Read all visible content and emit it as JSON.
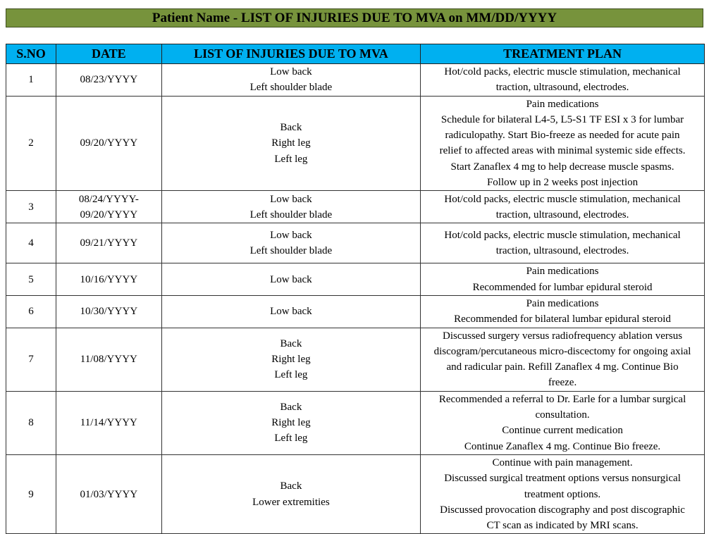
{
  "title": "Patient Name - LIST OF INJURIES DUE TO MVA on MM/DD/YYYY",
  "headers": [
    "S.NO",
    "DATE",
    "LIST OF INJURIES DUE TO MVA",
    "TREATMENT PLAN"
  ],
  "colors": {
    "title_bg": "#77933C",
    "header_bg": "#00B0F0"
  },
  "rows": [
    {
      "sno": "1",
      "date": [
        "08/23/YYYY"
      ],
      "injuries": [
        "Low back",
        "Left shoulder blade"
      ],
      "treatment": [
        "Hot/cold packs, electric muscle stimulation, mechanical",
        "traction, ultrasound, electrodes."
      ]
    },
    {
      "sno": "2",
      "date": [
        "09/20/YYYY"
      ],
      "injuries": [
        "Back",
        "Right leg",
        "Left leg"
      ],
      "treatment": [
        "Pain medications",
        "Schedule for bilateral L4-5, L5-S1 TF ESI x 3 for lumbar",
        "radiculopathy. Start Bio-freeze as needed for acute pain",
        "relief to affected areas with minimal systemic side effects.",
        "Start Zanaflex 4 mg to help decrease muscle spasms.",
        "Follow up in 2 weeks post injection"
      ]
    },
    {
      "sno": "3",
      "date": [
        "08/24/YYYY-",
        "09/20/YYYY"
      ],
      "injuries": [
        "Low back",
        "Left shoulder blade"
      ],
      "treatment": [
        "Hot/cold packs, electric muscle stimulation, mechanical",
        "traction, ultrasound, electrodes."
      ]
    },
    {
      "sno": "4",
      "date": [
        "09/21/YYYY"
      ],
      "injuries": [
        "Low back",
        "Left shoulder blade"
      ],
      "treatment": [
        "Hot/cold packs, electric muscle stimulation, mechanical",
        "traction, ultrasound, electrodes."
      ]
    },
    {
      "sno": "5",
      "date": [
        "10/16/YYYY"
      ],
      "injuries": [
        "Low back"
      ],
      "treatment": [
        "Pain medications",
        "Recommended for lumbar epidural steroid"
      ]
    },
    {
      "sno": "6",
      "date": [
        "10/30/YYYY"
      ],
      "injuries": [
        "Low back"
      ],
      "treatment": [
        "Pain medications",
        "Recommended for bilateral lumbar epidural steroid"
      ]
    },
    {
      "sno": "7",
      "date": [
        "11/08/YYYY"
      ],
      "injuries": [
        "Back",
        "Right leg",
        "Left leg"
      ],
      "treatment": [
        "Discussed surgery versus radiofrequency ablation versus",
        "discogram/percutaneous micro-discectomy for ongoing axial",
        "and radicular pain.  Refill Zanaflex 4 mg. Continue Bio",
        "freeze."
      ]
    },
    {
      "sno": "8",
      "date": [
        "11/14/YYYY"
      ],
      "injuries": [
        "Back",
        "Right leg",
        "Left leg"
      ],
      "treatment": [
        "Recommended a referral to Dr. Earle for a lumbar surgical",
        "consultation.",
        "Continue current medication",
        "Continue Zanaflex 4 mg. Continue Bio freeze."
      ]
    },
    {
      "sno": "9",
      "date": [
        "01/03/YYYY"
      ],
      "injuries": [
        "Back",
        "Lower extremities"
      ],
      "treatment": [
        "Continue with pain management.",
        "Discussed surgical treatment options versus nonsurgical",
        "treatment options.",
        "Discussed provocation discography and post discographic",
        "CT scan as indicated by MRI scans."
      ]
    }
  ]
}
